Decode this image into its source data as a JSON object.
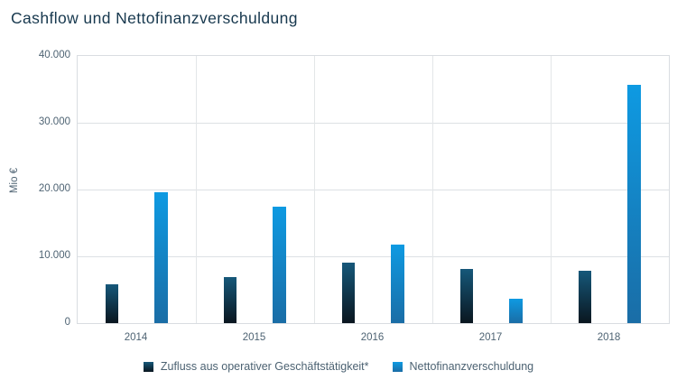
{
  "title": "Cashflow und Nettofinanzverschuldung",
  "chart_data": {
    "type": "bar",
    "categories": [
      "2014",
      "2015",
      "2016",
      "2017",
      "2018"
    ],
    "series": [
      {
        "name": "Zufluss aus operativer Geschäftstätigkeit*",
        "values": [
          5800,
          6900,
          9100,
          8100,
          7900
        ]
      },
      {
        "name": "Nettofinanzverschuldung",
        "values": [
          19600,
          17400,
          11800,
          3600,
          35700
        ]
      }
    ],
    "title": "Cashflow und Nettofinanzverschuldung",
    "xlabel": "",
    "ylabel": "Mio €",
    "ylim": [
      0,
      40000
    ],
    "yticks": [
      0,
      10000,
      20000,
      30000,
      40000
    ],
    "ytick_labels": [
      "0",
      "10.000",
      "20.000",
      "30.000",
      "40.000"
    ],
    "grid": true,
    "legend_position": "bottom"
  },
  "colors": {
    "series1_gradient_top": "#16587a",
    "series1_gradient_bottom": "#0a161f",
    "series2_gradient_top": "#0e9ae2",
    "series2_gradient_bottom": "#1a6da6",
    "title_text": "#17384e",
    "axis_text": "#4e6373",
    "grid": "#dde1e4",
    "plot_border": "#d9dde1",
    "background": "#ffffff"
  }
}
